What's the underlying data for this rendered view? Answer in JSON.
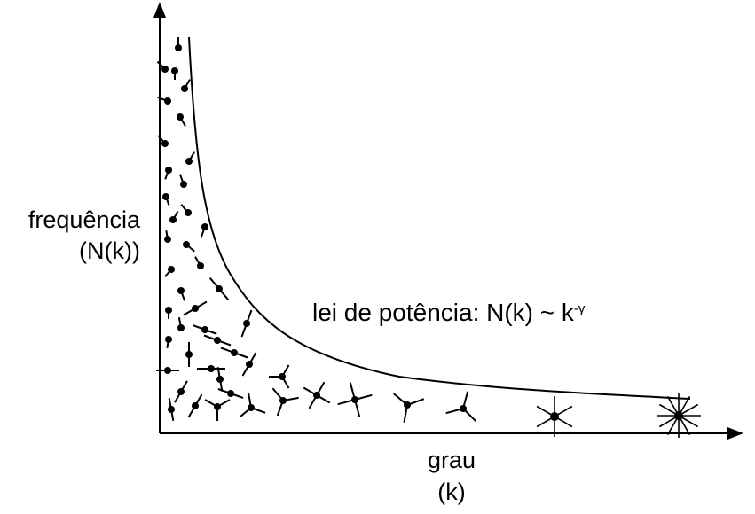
{
  "y_axis": {
    "line1": "frequência",
    "line2": "(N(k))"
  },
  "x_axis": {
    "line1": "grau",
    "line2": "(k)"
  },
  "law": {
    "text": "lei de potência: N(k) ~ k",
    "exponent": "-γ"
  },
  "colors": {
    "ink": "#000000",
    "background": "#ffffff"
  }
}
